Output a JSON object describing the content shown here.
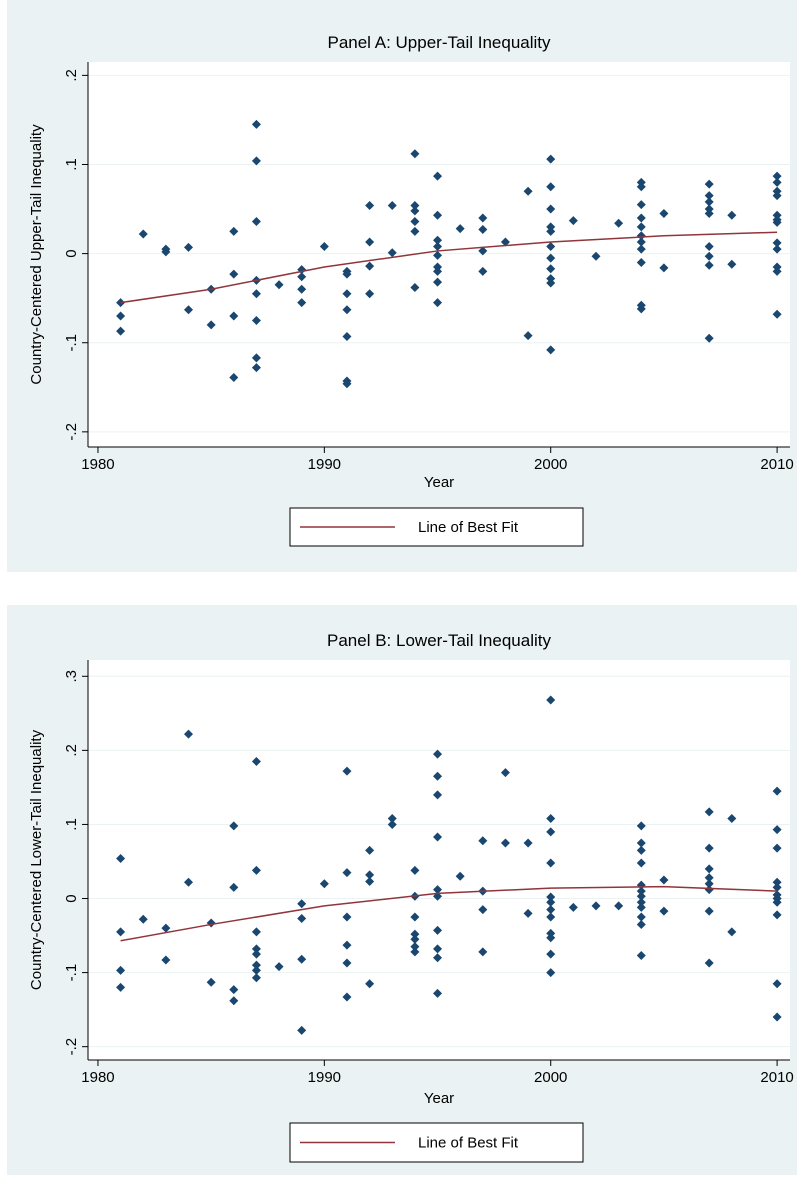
{
  "chart_data": [
    {
      "type": "scatter",
      "title": "Panel A: Upper-Tail Inequality",
      "x_label": "Year",
      "y_label": "Country-Centered Upper-Tail Inequality",
      "xlim": [
        1979.56,
        2010.57
      ],
      "xticks": [
        1980,
        1990,
        2000,
        2010
      ],
      "ylim": [
        -0.217,
        0.215
      ],
      "yticks": [
        {
          "value": -0.2,
          "label": "-.2"
        },
        {
          "value": -0.1,
          "label": "-.1"
        },
        0,
        {
          "value": 0.1,
          "label": ".1"
        },
        {
          "value": 0.2,
          "label": ".2"
        }
      ],
      "grid": true,
      "legend": "bottom",
      "series": [
        {
          "type": "scatter",
          "color": "#1a476f",
          "x": [
            1981,
            1981,
            1981,
            1982,
            1983,
            1983,
            1984,
            1984,
            1985,
            1985,
            1986,
            1986,
            1986,
            1986,
            1987,
            1987,
            1987,
            1987,
            1987,
            1987,
            1987,
            1987,
            1988,
            1989,
            1989,
            1989,
            1989,
            1990,
            1991,
            1991,
            1991,
            1991,
            1991,
            1991,
            1991,
            1992,
            1992,
            1992,
            1992,
            1993,
            1993,
            1994,
            1994,
            1994,
            1994,
            1994,
            1994,
            1995,
            1995,
            1995,
            1995,
            1995,
            1995,
            1995,
            1995,
            1995,
            1996,
            1997,
            1997,
            1997,
            1997,
            1998,
            1999,
            1999,
            2000,
            2000,
            2000,
            2000,
            2000,
            2000,
            2000,
            2000,
            2000,
            2000,
            2000,
            2001,
            2002,
            2003,
            2004,
            2004,
            2004,
            2004,
            2004,
            2004,
            2004,
            2004,
            2004,
            2004,
            2004,
            2005,
            2005,
            2007,
            2007,
            2007,
            2007,
            2007,
            2007,
            2007,
            2007,
            2007,
            2008,
            2008,
            2010,
            2010,
            2010,
            2010,
            2010,
            2010,
            2010,
            2010,
            2010,
            2010,
            2010,
            2010
          ],
          "values": [
            -0.055,
            -0.07,
            -0.087,
            0.022,
            0.005,
            0.002,
            0.007,
            -0.063,
            -0.04,
            -0.08,
            0.025,
            -0.023,
            -0.07,
            -0.139,
            0.145,
            0.104,
            0.036,
            -0.03,
            -0.045,
            -0.075,
            -0.117,
            -0.128,
            -0.035,
            -0.018,
            -0.026,
            -0.04,
            -0.055,
            0.008,
            -0.02,
            -0.023,
            -0.045,
            -0.063,
            -0.093,
            -0.143,
            -0.146,
            0.054,
            0.013,
            -0.014,
            -0.045,
            0.054,
            0.001,
            0.112,
            0.054,
            0.048,
            0.036,
            0.025,
            -0.038,
            0.087,
            0.043,
            0.015,
            0.008,
            -0.002,
            -0.015,
            -0.02,
            -0.032,
            -0.055,
            0.028,
            0.04,
            0.027,
            0.003,
            -0.02,
            0.013,
            0.07,
            -0.092,
            0.106,
            0.075,
            0.05,
            0.03,
            0.025,
            0.008,
            -0.005,
            -0.017,
            -0.028,
            -0.033,
            -0.108,
            0.037,
            -0.003,
            0.034,
            0.08,
            0.075,
            0.055,
            0.04,
            0.03,
            0.02,
            0.013,
            0.005,
            -0.01,
            -0.058,
            -0.062,
            0.045,
            -0.016,
            0.078,
            0.065,
            0.058,
            0.05,
            0.045,
            0.008,
            -0.003,
            -0.013,
            -0.095,
            0.043,
            -0.012,
            0.087,
            0.08,
            0.07,
            0.065,
            0.043,
            0.038,
            0.035,
            0.012,
            0.005,
            -0.015,
            -0.02,
            -0.068
          ]
        },
        {
          "type": "line",
          "name": "Line of Best Fit",
          "color": "#90353b",
          "x": [
            1981,
            1985,
            1990,
            1995,
            2000,
            2005,
            2010
          ],
          "values": [
            -0.055,
            -0.04,
            -0.015,
            0.003,
            0.013,
            0.02,
            0.024
          ]
        }
      ]
    },
    {
      "type": "scatter",
      "title": "Panel B: Lower-Tail Inequality",
      "x_label": "Year",
      "y_label": "Country-Centered Lower-Tail Inequality",
      "xlim": [
        1979.56,
        2010.57
      ],
      "xticks": [
        1980,
        1990,
        2000,
        2010
      ],
      "ylim": [
        -0.218,
        0.322
      ],
      "yticks": [
        {
          "value": -0.2,
          "label": "-.2"
        },
        {
          "value": -0.1,
          "label": "-.1"
        },
        0,
        {
          "value": 0.1,
          "label": ".1"
        },
        {
          "value": 0.2,
          "label": ".2"
        },
        {
          "value": 0.3,
          "label": ".3"
        }
      ],
      "grid": true,
      "legend": "bottom",
      "series": [
        {
          "type": "scatter",
          "color": "#1a476f",
          "x": [
            1981,
            1981,
            1981,
            1981,
            1982,
            1983,
            1983,
            1984,
            1984,
            1985,
            1985,
            1986,
            1986,
            1986,
            1986,
            1987,
            1987,
            1987,
            1987,
            1987,
            1987,
            1987,
            1987,
            1988,
            1989,
            1989,
            1989,
            1989,
            1990,
            1991,
            1991,
            1991,
            1991,
            1991,
            1991,
            1992,
            1992,
            1992,
            1992,
            1993,
            1993,
            1994,
            1994,
            1994,
            1994,
            1994,
            1994,
            1994,
            1995,
            1995,
            1995,
            1995,
            1995,
            1995,
            1995,
            1995,
            1995,
            1995,
            1996,
            1997,
            1997,
            1997,
            1997,
            1998,
            1998,
            1999,
            1999,
            2000,
            2000,
            2000,
            2000,
            2000,
            2000,
            2000,
            2000,
            2000,
            2000,
            2000,
            2000,
            2001,
            2002,
            2003,
            2004,
            2004,
            2004,
            2004,
            2004,
            2004,
            2004,
            2004,
            2004,
            2004,
            2004,
            2004,
            2005,
            2005,
            2007,
            2007,
            2007,
            2007,
            2007,
            2007,
            2007,
            2007,
            2008,
            2008,
            2010,
            2010,
            2010,
            2010,
            2010,
            2010,
            2010,
            2010,
            2010,
            2010,
            2010
          ],
          "values": [
            0.054,
            -0.045,
            -0.097,
            -0.12,
            -0.028,
            -0.04,
            -0.083,
            0.222,
            0.022,
            -0.033,
            -0.113,
            0.098,
            0.015,
            -0.123,
            -0.138,
            0.185,
            0.038,
            -0.045,
            -0.068,
            -0.075,
            -0.09,
            -0.097,
            -0.107,
            -0.092,
            -0.007,
            -0.027,
            -0.082,
            -0.178,
            0.02,
            0.172,
            0.035,
            -0.025,
            -0.063,
            -0.087,
            -0.133,
            0.065,
            0.032,
            0.023,
            -0.115,
            0.108,
            0.1,
            0.038,
            0.003,
            -0.025,
            -0.048,
            -0.055,
            -0.065,
            -0.072,
            0.195,
            0.165,
            0.14,
            0.083,
            0.012,
            0.003,
            -0.043,
            -0.068,
            -0.08,
            -0.128,
            0.03,
            0.078,
            0.01,
            -0.015,
            -0.072,
            0.17,
            0.075,
            0.075,
            -0.02,
            0.268,
            0.108,
            0.09,
            0.048,
            0.002,
            -0.005,
            -0.015,
            -0.025,
            -0.047,
            -0.053,
            -0.075,
            -0.1,
            -0.012,
            -0.01,
            -0.01,
            0.098,
            0.075,
            0.065,
            0.048,
            0.018,
            0.01,
            0.003,
            -0.005,
            -0.012,
            -0.025,
            -0.035,
            -0.077,
            0.025,
            -0.017,
            0.117,
            0.068,
            0.04,
            0.028,
            0.02,
            0.012,
            -0.017,
            -0.087,
            0.108,
            -0.045,
            0.145,
            0.093,
            0.068,
            0.022,
            0.015,
            0.005,
            0,
            -0.005,
            -0.022,
            -0.115,
            -0.16
          ]
        },
        {
          "type": "line",
          "name": "Line of Best Fit",
          "color": "#90353b",
          "x": [
            1981,
            1985,
            1990,
            1995,
            2000,
            2005,
            2010
          ],
          "values": [
            -0.057,
            -0.035,
            -0.01,
            0.007,
            0.014,
            0.016,
            0.01
          ]
        }
      ]
    }
  ]
}
